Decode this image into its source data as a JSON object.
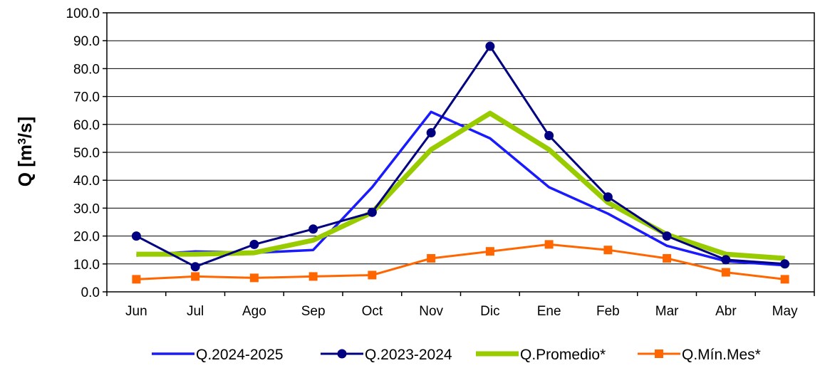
{
  "chart_data": {
    "type": "line",
    "categories": [
      "Jun",
      "Jul",
      "Ago",
      "Sep",
      "Oct",
      "Nov",
      "Dic",
      "Ene",
      "Feb",
      "Mar",
      "Abr",
      "May"
    ],
    "ylabel": {
      "main": "Q [m",
      "sup": "3",
      "tail": "/s]"
    },
    "ylim": [
      0,
      100
    ],
    "yticks": [
      "0.0",
      "10.0",
      "20.0",
      "30.0",
      "40.0",
      "50.0",
      "60.0",
      "70.0",
      "80.0",
      "90.0",
      "100.0"
    ],
    "grid": true,
    "legend_position": "bottom",
    "series": [
      {
        "name": "Q.2024-2025",
        "color": "#1a1aff",
        "marker": "none",
        "values": [
          13.0,
          14.5,
          14.0,
          15.0,
          37.5,
          64.5,
          55.0,
          37.5,
          28.0,
          16.5,
          11.0,
          9.5
        ]
      },
      {
        "name": "Q.2023-2024",
        "color": "#000080",
        "marker": "circle",
        "values": [
          20.0,
          9.0,
          17.0,
          22.5,
          28.5,
          57.0,
          88.0,
          56.0,
          34.0,
          20.0,
          11.5,
          10.0
        ]
      },
      {
        "name": "Q.Promedio*",
        "color": "#99cc00",
        "marker": "none",
        "values": [
          13.5,
          13.5,
          14.0,
          18.5,
          28.5,
          51.0,
          64.0,
          51.0,
          32.0,
          20.5,
          13.5,
          12.0
        ]
      },
      {
        "name": "Q.Mín.Mes*",
        "color": "#ff6600",
        "marker": "square",
        "values": [
          4.5,
          5.5,
          5.0,
          5.5,
          6.0,
          12.0,
          14.5,
          17.0,
          15.0,
          12.0,
          7.0,
          4.5
        ]
      }
    ]
  }
}
